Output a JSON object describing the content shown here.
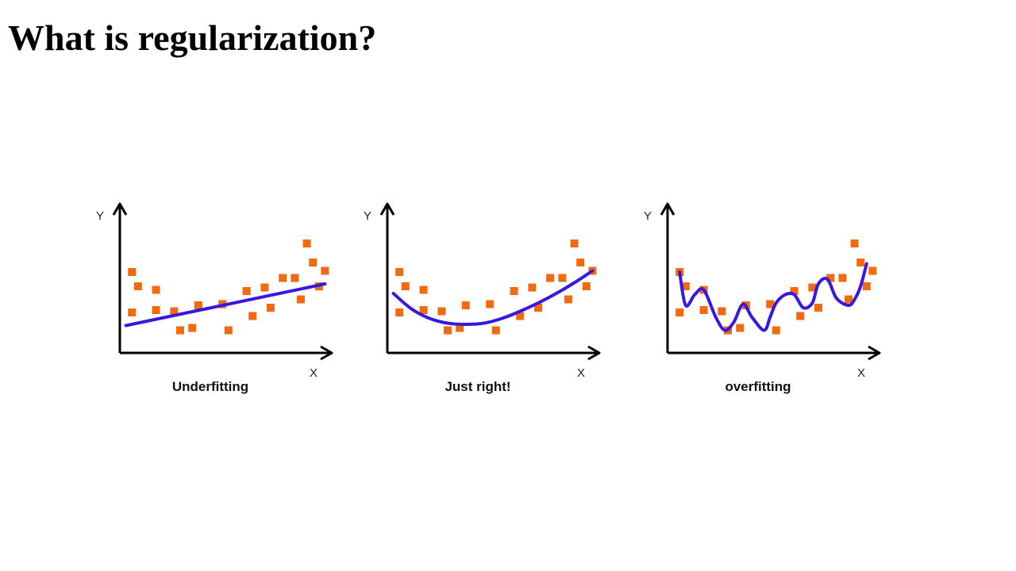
{
  "slide": {
    "title": "What is regularization?"
  },
  "colors": {
    "point": "#F26A0F",
    "curve": "#3A17E0",
    "axis": "#000000"
  },
  "panels": [
    {
      "caption": "Underfitting",
      "axis_x": "X",
      "axis_y": "Y",
      "fit": "linear",
      "points": [
        [
          2,
          6.8
        ],
        [
          3,
          5.6
        ],
        [
          2,
          3.4
        ],
        [
          6,
          3.6
        ],
        [
          6,
          5.3
        ],
        [
          9,
          3.5
        ],
        [
          10,
          1.9
        ],
        [
          12,
          2.1
        ],
        [
          13,
          4.0
        ],
        [
          17,
          4.1
        ],
        [
          18,
          1.9
        ],
        [
          21,
          5.2
        ],
        [
          22,
          3.1
        ],
        [
          24,
          5.5
        ],
        [
          25,
          3.8
        ],
        [
          27,
          6.3
        ],
        [
          29,
          6.3
        ],
        [
          30,
          4.5
        ],
        [
          31,
          9.2
        ],
        [
          32,
          7.6
        ],
        [
          33,
          5.6
        ],
        [
          34,
          6.9
        ]
      ],
      "curve": [
        [
          1,
          2.3
        ],
        [
          34,
          5.8
        ]
      ]
    },
    {
      "caption": "Just right!",
      "axis_x": "X",
      "axis_y": "Y",
      "fit": "quadratic",
      "points": [
        [
          2,
          6.8
        ],
        [
          3,
          5.6
        ],
        [
          2,
          3.4
        ],
        [
          6,
          3.6
        ],
        [
          6,
          5.3
        ],
        [
          9,
          3.5
        ],
        [
          10,
          1.9
        ],
        [
          12,
          2.1
        ],
        [
          13,
          4.0
        ],
        [
          17,
          4.1
        ],
        [
          18,
          1.9
        ],
        [
          21,
          5.2
        ],
        [
          22,
          3.1
        ],
        [
          24,
          5.5
        ],
        [
          25,
          3.8
        ],
        [
          27,
          6.3
        ],
        [
          29,
          6.3
        ],
        [
          30,
          4.5
        ],
        [
          31,
          9.2
        ],
        [
          32,
          7.6
        ],
        [
          33,
          5.6
        ],
        [
          34,
          6.9
        ]
      ],
      "curve": [
        [
          1,
          5.0
        ],
        [
          4,
          3.7
        ],
        [
          7,
          2.9
        ],
        [
          10,
          2.5
        ],
        [
          13,
          2.4
        ],
        [
          16,
          2.5
        ],
        [
          19,
          2.9
        ],
        [
          22,
          3.5
        ],
        [
          25,
          4.2
        ],
        [
          28,
          5.0
        ],
        [
          31,
          5.9
        ],
        [
          34,
          6.9
        ]
      ]
    },
    {
      "caption": "overfitting",
      "axis_x": "X",
      "axis_y": "Y",
      "fit": "high-order",
      "points": [
        [
          2,
          6.8
        ],
        [
          3,
          5.6
        ],
        [
          2,
          3.4
        ],
        [
          6,
          3.6
        ],
        [
          6,
          5.3
        ],
        [
          9,
          3.5
        ],
        [
          10,
          1.9
        ],
        [
          12,
          2.1
        ],
        [
          13,
          4.0
        ],
        [
          17,
          4.1
        ],
        [
          18,
          1.9
        ],
        [
          21,
          5.2
        ],
        [
          22,
          3.1
        ],
        [
          24,
          5.5
        ],
        [
          25,
          3.8
        ],
        [
          27,
          6.3
        ],
        [
          29,
          6.3
        ],
        [
          30,
          4.5
        ],
        [
          31,
          9.2
        ],
        [
          32,
          7.6
        ],
        [
          33,
          5.6
        ],
        [
          34,
          6.9
        ]
      ],
      "curve": [
        [
          2,
          6.8
        ],
        [
          3,
          4.0
        ],
        [
          4.5,
          4.9
        ],
        [
          6,
          5.3
        ],
        [
          8,
          3.0
        ],
        [
          9.5,
          1.9
        ],
        [
          11,
          2.6
        ],
        [
          12.5,
          4.1
        ],
        [
          14,
          3.0
        ],
        [
          16,
          1.9
        ],
        [
          17,
          3.0
        ],
        [
          18,
          4.2
        ],
        [
          19.5,
          4.9
        ],
        [
          21,
          4.9
        ],
        [
          22.5,
          3.8
        ],
        [
          24,
          4.2
        ],
        [
          25,
          5.8
        ],
        [
          26.5,
          6.2
        ],
        [
          28,
          4.6
        ],
        [
          30,
          4.0
        ],
        [
          31,
          4.5
        ],
        [
          32,
          5.6
        ],
        [
          33,
          7.5
        ]
      ]
    }
  ]
}
